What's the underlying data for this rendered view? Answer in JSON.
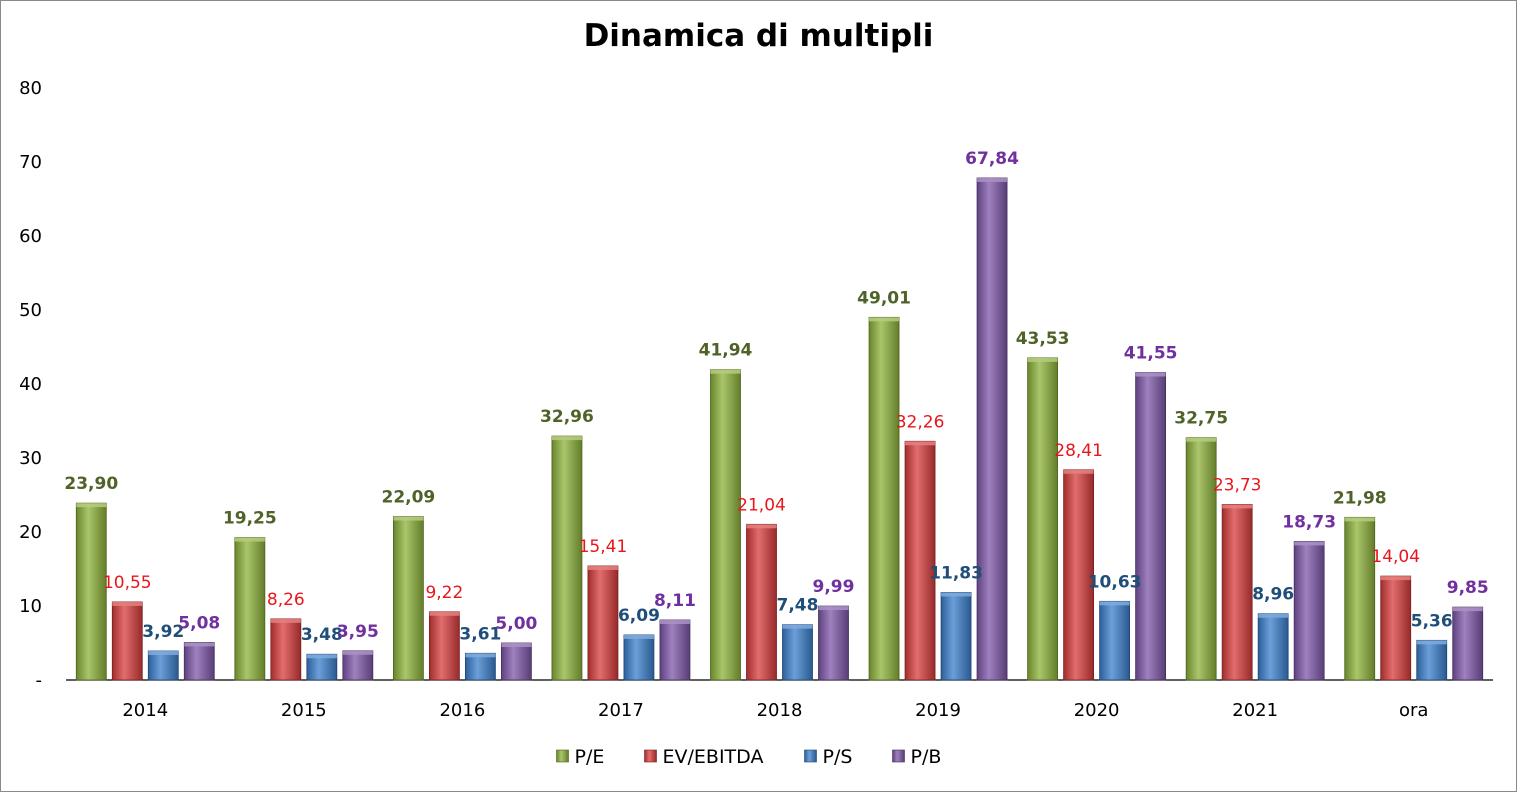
{
  "chart_data": {
    "type": "bar",
    "title": "Dinamica di multipli",
    "xlabel": "",
    "ylabel": "",
    "ylim": [
      0,
      80
    ],
    "yticks": [
      "-",
      "10",
      "20",
      "30",
      "40",
      "50",
      "60",
      "70",
      "80"
    ],
    "categories": [
      "2014",
      "2015",
      "2016",
      "2017",
      "2018",
      "2019",
      "2020",
      "2021",
      "ora"
    ],
    "grid": false,
    "legend_position": "bottom",
    "series": [
      {
        "name": "P/E",
        "color": "#8DB33A",
        "label_color": "#4F6228",
        "values": [
          23.9,
          19.25,
          22.09,
          32.96,
          41.94,
          49.01,
          43.53,
          32.75,
          21.98
        ],
        "labels": [
          "23,90",
          "19,25",
          "22,09",
          "32,96",
          "41,94",
          "49,01",
          "43,53",
          "32,75",
          "21,98"
        ]
      },
      {
        "name": "EV/EBITDA",
        "color": "#D83C3C",
        "label_color": "#E8161B",
        "values": [
          10.55,
          8.26,
          9.22,
          15.41,
          21.04,
          32.26,
          28.41,
          23.73,
          14.04
        ],
        "labels": [
          "10,55",
          "8,26",
          "9,22",
          "15,41",
          "21,04",
          "32,26",
          "28,41",
          "23,73",
          "14,04"
        ]
      },
      {
        "name": "P/S",
        "color": "#3B7FCC",
        "label_color": "#1F4E79",
        "values": [
          3.92,
          3.48,
          3.61,
          6.09,
          7.48,
          11.83,
          10.63,
          8.96,
          5.36
        ],
        "labels": [
          "3,92",
          "3,48",
          "3,61",
          "6,09",
          "7,48",
          "11,83",
          "10,63",
          "8,96",
          "5,36"
        ]
      },
      {
        "name": "P/B",
        "color": "#7D57A8",
        "label_color": "#7030A0",
        "values": [
          5.08,
          3.95,
          5.0,
          8.11,
          9.99,
          67.84,
          41.55,
          18.73,
          9.85
        ],
        "labels": [
          "5,08",
          "3,95",
          "5,00",
          "8,11",
          "9,99",
          "67,84",
          "41,55",
          "18,73",
          "9,85"
        ]
      }
    ]
  }
}
